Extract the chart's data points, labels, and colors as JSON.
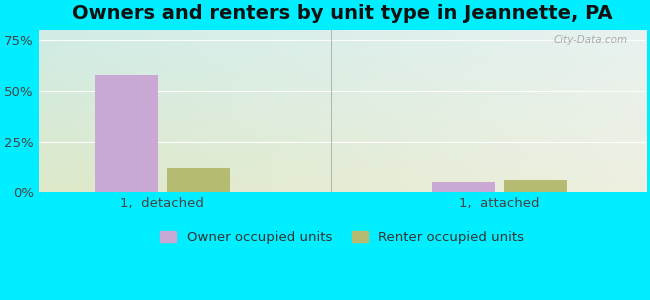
{
  "title": "Owners and renters by unit type in Jeannette, PA",
  "categories": [
    "1,  detached",
    "1,  attached"
  ],
  "owner_values": [
    58,
    5
  ],
  "renter_values": [
    12,
    6
  ],
  "owner_color": "#c9a8d4",
  "renter_color": "#b5bc72",
  "owner_label": "Owner occupied units",
  "renter_label": "Renter occupied units",
  "yticks": [
    0,
    25,
    50,
    75
  ],
  "ytick_labels": [
    "0%",
    "25%",
    "50%",
    "75%"
  ],
  "ylim": [
    0,
    80
  ],
  "bar_width": 0.28,
  "watermark": "City-Data.com",
  "title_fontsize": 14,
  "tick_fontsize": 9.5,
  "legend_fontsize": 9.5,
  "bg_top_left": "#d8efeb",
  "bg_bottom_right": "#e8edd8",
  "fig_color": "#00eeff"
}
